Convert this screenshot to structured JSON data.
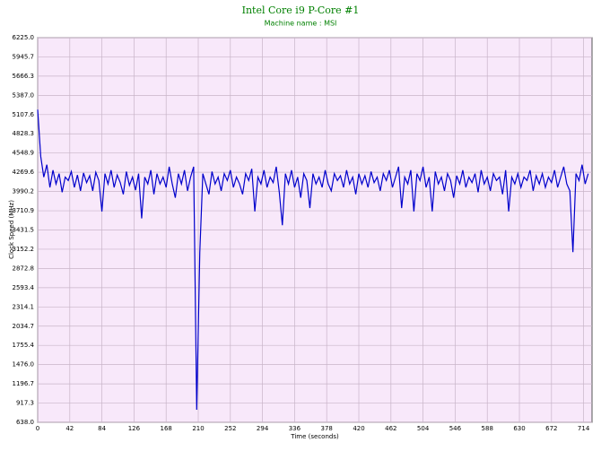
{
  "chart_data": {
    "type": "line",
    "title": "Intel Core i9 P-Core #1",
    "subtitle": "Machine name : MSI",
    "xlabel": "Time (seconds)",
    "ylabel": "Clock Speed (MHz)",
    "xlim": [
      0,
      725
    ],
    "ylim": [
      638,
      6225
    ],
    "xticks": [
      0,
      42,
      84,
      126,
      168,
      210,
      252,
      294,
      336,
      378,
      420,
      462,
      504,
      546,
      588,
      630,
      672,
      714
    ],
    "yticks": [
      {
        "value": 638,
        "label": "638.0"
      },
      917.3,
      1196.7,
      {
        "value": 1476,
        "label": "1476.0"
      },
      1755.4,
      2034.7,
      2314.1,
      2593.4,
      2872.8,
      3152.2,
      3431.5,
      3710.9,
      3990.2,
      4269.6,
      4548.9,
      4828.3,
      {
        "value": 5107.6,
        "label": "5107.6"
      },
      {
        "value": 5387,
        "label": "5387.0"
      },
      5666.3,
      5945.7,
      {
        "value": 6225,
        "label": "6225.0"
      }
    ],
    "grid": true,
    "series": [
      {
        "name": "Clock Speed",
        "color": "#0000cc",
        "x": [
          0,
          4,
          8,
          12,
          16,
          20,
          24,
          28,
          32,
          36,
          40,
          44,
          48,
          52,
          56,
          60,
          64,
          68,
          72,
          76,
          80,
          84,
          88,
          92,
          96,
          100,
          104,
          108,
          112,
          116,
          120,
          124,
          128,
          132,
          136,
          140,
          144,
          148,
          152,
          156,
          160,
          164,
          168,
          172,
          176,
          180,
          184,
          188,
          192,
          196,
          200,
          204,
          208,
          212,
          216,
          220,
          224,
          228,
          232,
          236,
          240,
          244,
          248,
          252,
          256,
          260,
          264,
          268,
          272,
          276,
          280,
          284,
          288,
          292,
          296,
          300,
          304,
          308,
          312,
          316,
          320,
          324,
          328,
          332,
          336,
          340,
          344,
          348,
          352,
          356,
          360,
          364,
          368,
          372,
          376,
          380,
          384,
          388,
          392,
          396,
          400,
          404,
          408,
          412,
          416,
          420,
          424,
          428,
          432,
          436,
          440,
          444,
          448,
          452,
          456,
          460,
          464,
          468,
          472,
          476,
          480,
          484,
          488,
          492,
          496,
          500,
          504,
          508,
          512,
          516,
          520,
          524,
          528,
          532,
          536,
          540,
          544,
          548,
          552,
          556,
          560,
          564,
          568,
          572,
          576,
          580,
          584,
          588,
          592,
          596,
          600,
          604,
          608,
          612,
          616,
          620,
          624,
          628,
          632,
          636,
          640,
          644,
          648,
          652,
          656,
          660,
          664,
          668,
          672,
          676,
          680,
          684,
          688,
          692,
          696,
          700,
          704,
          708,
          712,
          716,
          720
        ],
        "values": [
          5180,
          4500,
          4200,
          4380,
          4050,
          4300,
          4100,
          4250,
          3980,
          4200,
          4150,
          4280,
          4050,
          4230,
          4000,
          4260,
          4120,
          4220,
          4000,
          4270,
          4150,
          3700,
          4250,
          4100,
          4300,
          4050,
          4230,
          4120,
          3950,
          4280,
          4080,
          4200,
          4010,
          4250,
          3600,
          4200,
          4100,
          4300,
          3950,
          4250,
          4100,
          4200,
          4050,
          4350,
          4100,
          3900,
          4250,
          4100,
          4300,
          4000,
          4200,
          4350,
          820,
          3100,
          4250,
          4100,
          3950,
          4280,
          4100,
          4200,
          4000,
          4250,
          4150,
          4300,
          4050,
          4200,
          4100,
          3950,
          4250,
          4150,
          4320,
          3700,
          4200,
          4100,
          4300,
          4050,
          4200,
          4120,
          4350,
          3980,
          3500,
          4250,
          4100,
          4300,
          4050,
          4200,
          3900,
          4250,
          4150,
          3750,
          4250,
          4100,
          4200,
          4050,
          4300,
          4100,
          4000,
          4250,
          4150,
          4220,
          4050,
          4300,
          4100,
          4200,
          3950,
          4250,
          4100,
          4220,
          4050,
          4280,
          4120,
          4200,
          4000,
          4250,
          4150,
          4300,
          4050,
          4200,
          4350,
          3750,
          4200,
          4100,
          4300,
          3700,
          4250,
          4150,
          4350,
          4050,
          4200,
          3700,
          4280,
          4100,
          4200,
          4000,
          4250,
          4150,
          3900,
          4220,
          4100,
          4300,
          4050,
          4200,
          4120,
          4250,
          3980,
          4300,
          4100,
          4200,
          4000,
          4250,
          4150,
          4200,
          3950,
          4300,
          3700,
          4200,
          4100,
          4250,
          4050,
          4200,
          4150,
          4300,
          4000,
          4220,
          4100,
          4250,
          4050,
          4200,
          4120,
          4300,
          4050,
          4200,
          4350,
          4100,
          4000,
          3110,
          4250,
          4150,
          4380,
          4100,
          4250
        ]
      }
    ]
  }
}
